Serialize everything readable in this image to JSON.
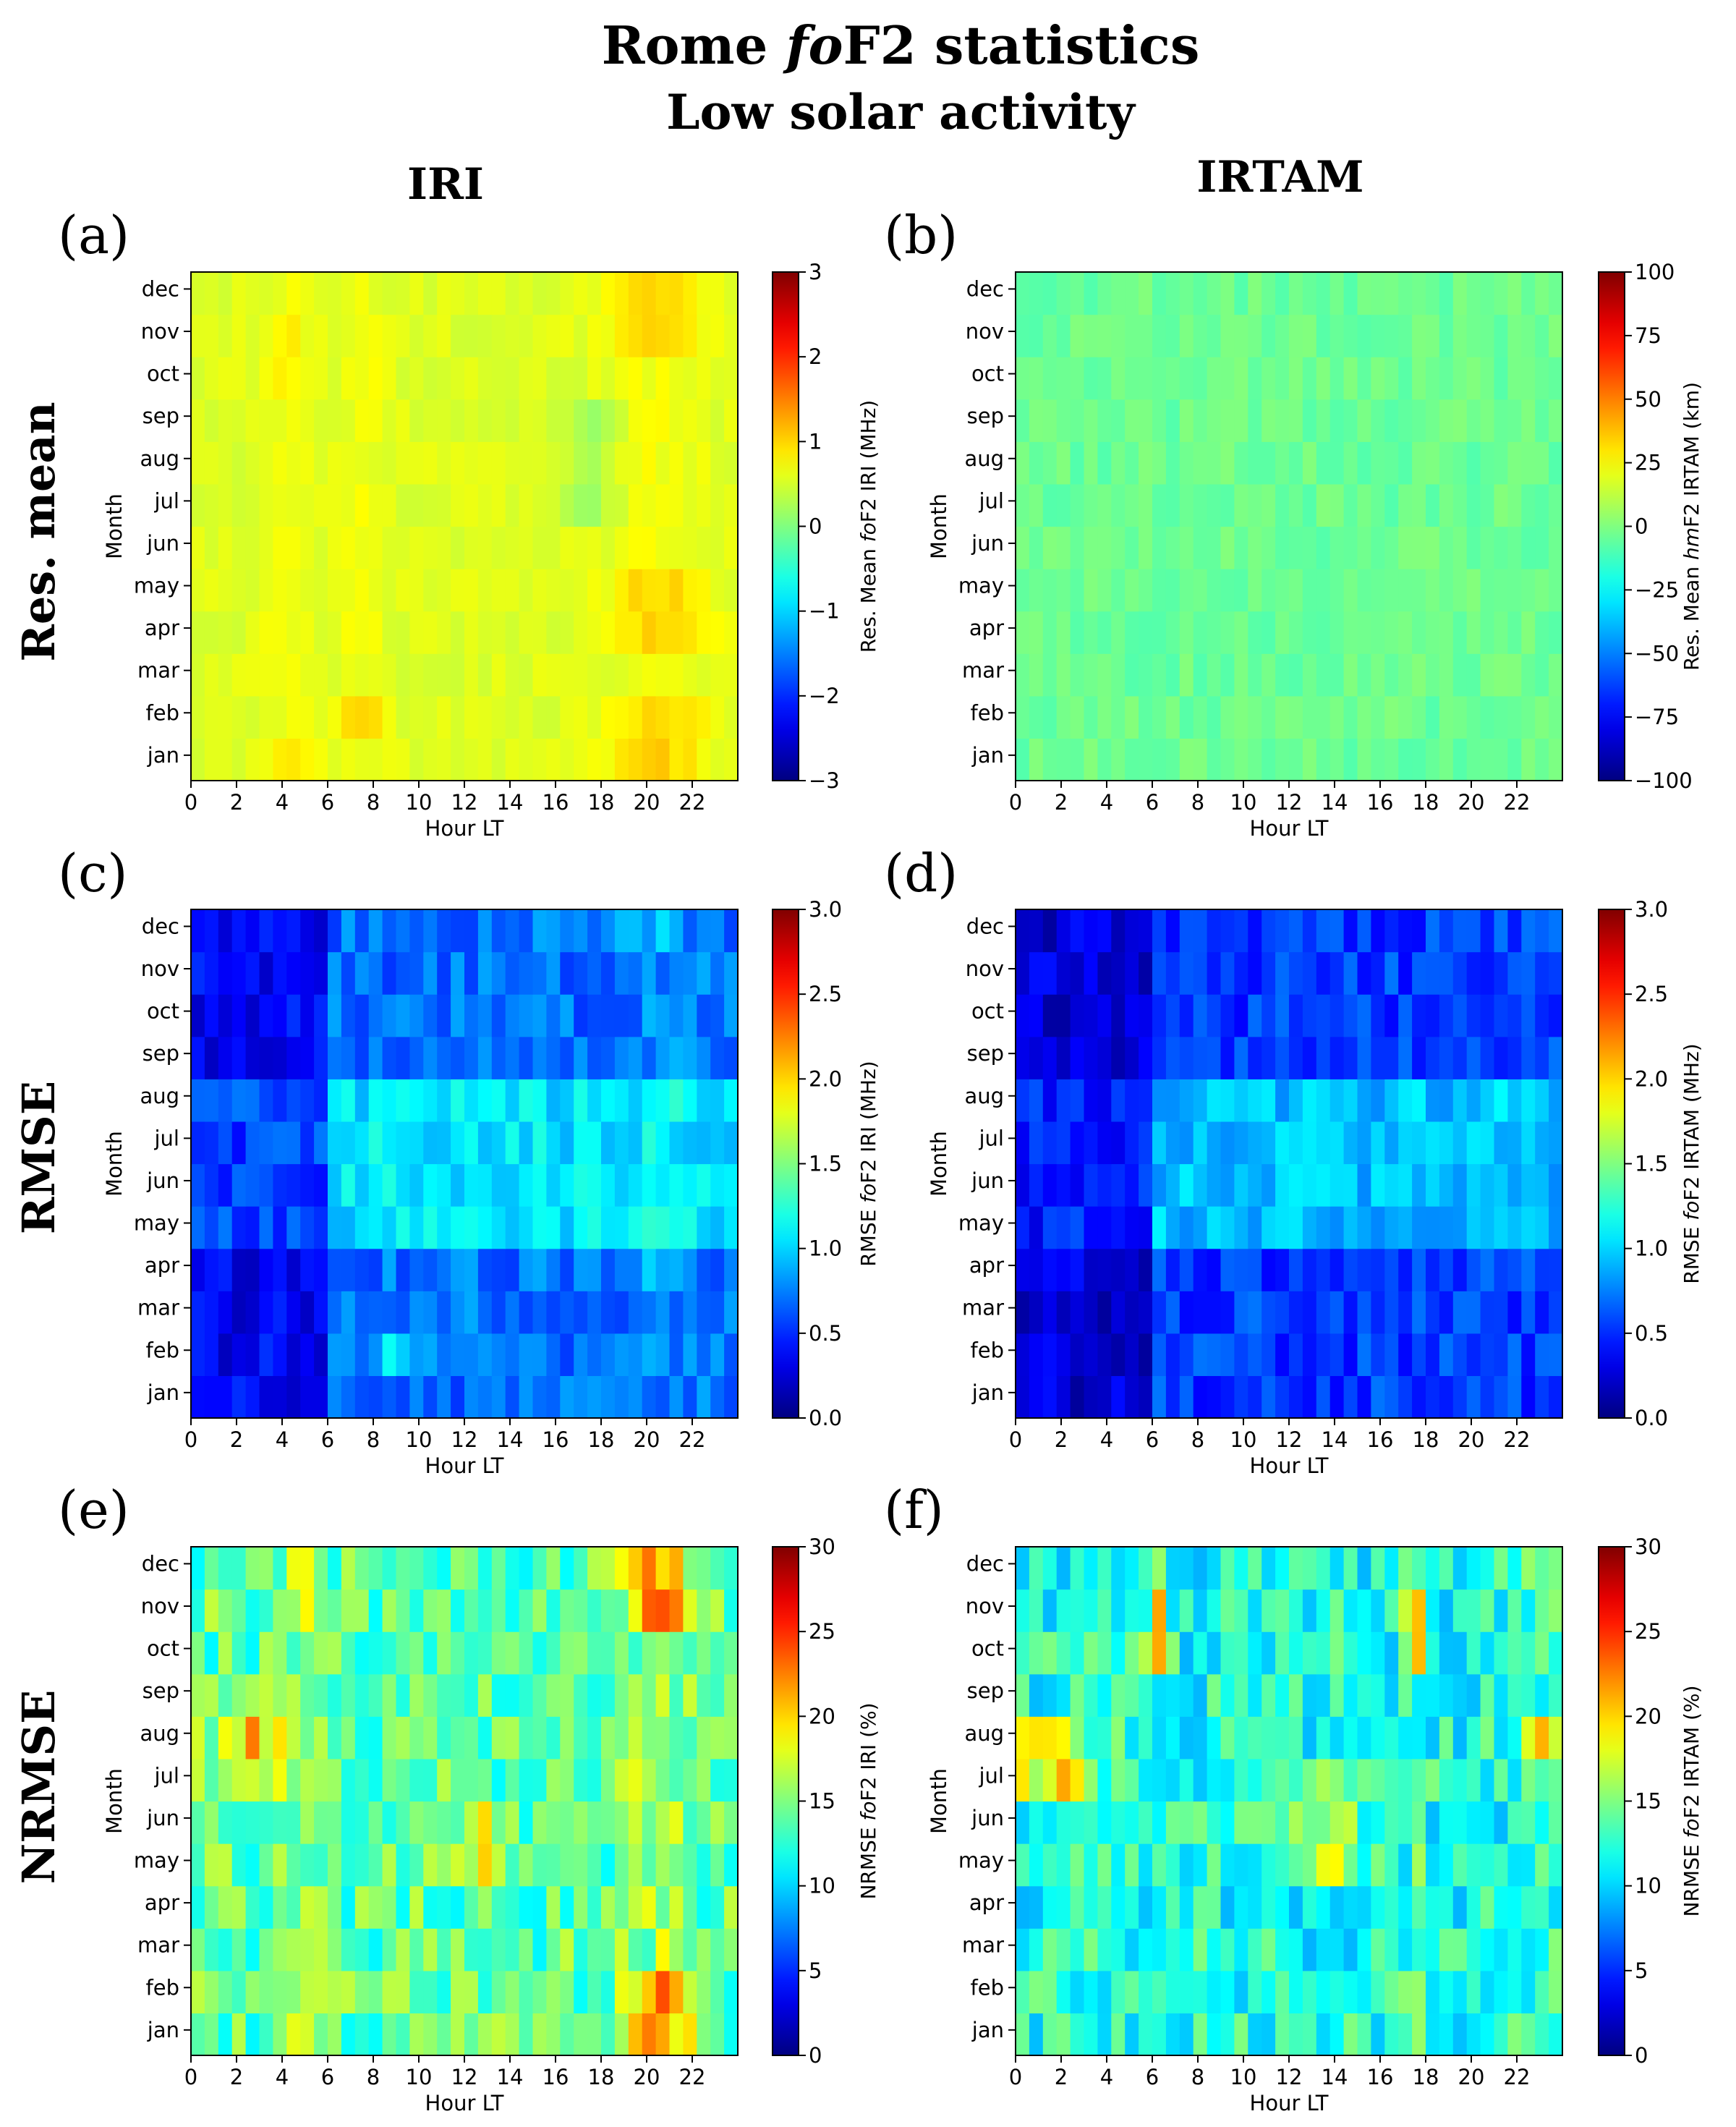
{
  "header": {
    "title_prefix": "Rome ",
    "title_italic": "fo",
    "title_suffix": "F2 statistics",
    "subtitle": "Low solar activity",
    "col_left": "IRI",
    "col_right": "IRTAM"
  },
  "row_labels": [
    "Res. mean",
    "RMSE",
    "NRMSE"
  ],
  "chart_data": [
    {
      "id": "a",
      "panel_label": "(a)",
      "type": "heatmap",
      "xlabel": "Hour LT",
      "ylabel": "Month",
      "xticks": [
        "0",
        "2",
        "4",
        "6",
        "8",
        "10",
        "12",
        "14",
        "16",
        "18",
        "20",
        "22"
      ],
      "xlim": [
        0,
        24
      ],
      "yticks": [
        "jan",
        "feb",
        "mar",
        "apr",
        "may",
        "jun",
        "jul",
        "aug",
        "sep",
        "oct",
        "nov",
        "dec"
      ],
      "colorbar": {
        "vmin": -3,
        "vmax": 3,
        "ticks": [
          "3",
          "2",
          "1",
          "0",
          "−1",
          "−2",
          "−3"
        ],
        "label_pre": "Res. Mean ",
        "label_italic": "fo",
        "label_post": "F2 IRI (MHz)"
      },
      "approx_values_note": "mean residual approx 0 to +1.2 MHz; maxima near 7-8 LT feb and 19-23 LT dec/apr/may/feb"
    },
    {
      "id": "b",
      "panel_label": "(b)",
      "type": "heatmap",
      "xlabel": "Hour LT",
      "ylabel": "Month",
      "xticks": [
        "0",
        "2",
        "4",
        "6",
        "8",
        "10",
        "12",
        "14",
        "16",
        "18",
        "20",
        "22"
      ],
      "xlim": [
        0,
        24
      ],
      "yticks": [
        "jan",
        "feb",
        "mar",
        "apr",
        "may",
        "jun",
        "jul",
        "aug",
        "sep",
        "oct",
        "nov",
        "dec"
      ],
      "colorbar": {
        "vmin": -100,
        "vmax": 100,
        "ticks": [
          "100",
          "75",
          "50",
          "25",
          "0",
          "−25",
          "−50",
          "−75",
          "−100"
        ],
        "label_pre": "Res. Mean ",
        "label_italic": "hm",
        "label_post": "F2 IRTAM (km)"
      },
      "approx_values_note": "mean residual approx -15 to +15 km, near zero everywhere"
    },
    {
      "id": "c",
      "panel_label": "(c)",
      "type": "heatmap",
      "xlabel": "Hour LT",
      "ylabel": "Month",
      "xticks": [
        "0",
        "2",
        "4",
        "6",
        "8",
        "10",
        "12",
        "14",
        "16",
        "18",
        "20",
        "22"
      ],
      "xlim": [
        0,
        24
      ],
      "yticks": [
        "jan",
        "feb",
        "mar",
        "apr",
        "may",
        "jun",
        "jul",
        "aug",
        "sep",
        "oct",
        "nov",
        "dec"
      ],
      "colorbar": {
        "vmin": 0,
        "vmax": 3,
        "ticks": [
          "3.0",
          "2.5",
          "2.0",
          "1.5",
          "1.0",
          "0.5",
          "0.0"
        ],
        "label_pre": "RMSE ",
        "label_italic": "fo",
        "label_post": "F2 IRI (MHz)"
      },
      "approx_values_note": "RMSE approx 0.3-1.4 MHz; higher in summer daytime"
    },
    {
      "id": "d",
      "panel_label": "(d)",
      "type": "heatmap",
      "xlabel": "Hour LT",
      "ylabel": "Month",
      "xticks": [
        "0",
        "2",
        "4",
        "6",
        "8",
        "10",
        "12",
        "14",
        "16",
        "18",
        "20",
        "22"
      ],
      "xlim": [
        0,
        24
      ],
      "yticks": [
        "jan",
        "feb",
        "mar",
        "apr",
        "may",
        "jun",
        "jul",
        "aug",
        "sep",
        "oct",
        "nov",
        "dec"
      ],
      "colorbar": {
        "vmin": 0,
        "vmax": 3,
        "ticks": [
          "3.0",
          "2.5",
          "2.0",
          "1.5",
          "1.0",
          "0.5",
          "0.0"
        ],
        "label_pre": "RMSE ",
        "label_italic": "fo",
        "label_post": "F2 IRTAM (MHz)"
      },
      "approx_values_note": "RMSE approx 0.2-1.3 MHz; higher in summer daytime"
    },
    {
      "id": "e",
      "panel_label": "(e)",
      "type": "heatmap",
      "xlabel": "Hour LT",
      "ylabel": "Month",
      "xticks": [
        "0",
        "2",
        "4",
        "6",
        "8",
        "10",
        "12",
        "14",
        "16",
        "18",
        "20",
        "22"
      ],
      "xlim": [
        0,
        24
      ],
      "yticks": [
        "jan",
        "feb",
        "mar",
        "apr",
        "may",
        "jun",
        "jul",
        "aug",
        "sep",
        "oct",
        "nov",
        "dec"
      ],
      "colorbar": {
        "vmin": 0,
        "vmax": 30,
        "ticks": [
          "30",
          "25",
          "20",
          "15",
          "10",
          "5",
          "0"
        ],
        "label_pre": "NRMSE ",
        "label_italic": "fo",
        "label_post": "F2 IRI (%)"
      },
      "approx_values_note": "NRMSE approx 10-29 %; peak near 20 LT dec"
    },
    {
      "id": "f",
      "panel_label": "(f)",
      "type": "heatmap",
      "xlabel": "Hour LT",
      "ylabel": "Month",
      "xticks": [
        "0",
        "2",
        "4",
        "6",
        "8",
        "10",
        "12",
        "14",
        "16",
        "18",
        "20",
        "22"
      ],
      "xlim": [
        0,
        24
      ],
      "yticks": [
        "jan",
        "feb",
        "mar",
        "apr",
        "may",
        "jun",
        "jul",
        "aug",
        "sep",
        "oct",
        "nov",
        "dec"
      ],
      "colorbar": {
        "vmin": 0,
        "vmax": 30,
        "ticks": [
          "30",
          "25",
          "20",
          "15",
          "10",
          "5",
          "0"
        ],
        "label_pre": "NRMSE ",
        "label_italic": "fo",
        "label_post": "F2 IRTAM (%)"
      },
      "approx_values_note": "NRMSE approx 8-27 %; peaks near 6 LT and 17.5 LT oct/nov"
    }
  ]
}
